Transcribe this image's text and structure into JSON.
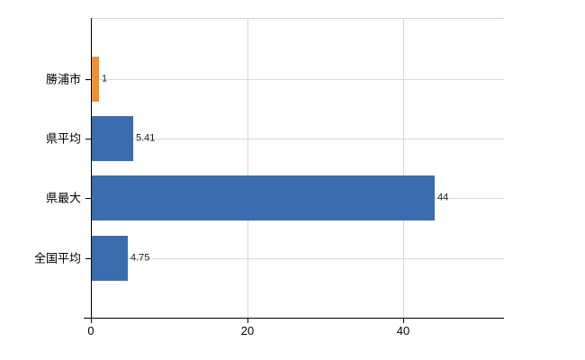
{
  "chart_data": {
    "type": "bar",
    "orientation": "horizontal",
    "title": "",
    "xlabel": "",
    "ylabel": "",
    "categories": [
      "勝浦市",
      "県平均",
      "県最大",
      "全国平均"
    ],
    "values": [
      1,
      5.41,
      44,
      4.75
    ],
    "value_labels": [
      "1",
      "5.41",
      "44",
      "4.75"
    ],
    "bar_colors": [
      "#f0912d",
      "#3b6cae",
      "#3b6cae",
      "#3b6cae"
    ],
    "xlim": [
      0,
      52.9
    ],
    "x_ticks": [
      0,
      20,
      40
    ],
    "grid": true,
    "legend": false,
    "colors": {
      "highlight_bar": "#f0912d",
      "default_bar": "#3b6cae",
      "gridline": "#d9d9d9",
      "plot_border": "#d6d6d6",
      "axis": "#000000",
      "text": "#000000",
      "value_text": "#1a1a1a",
      "background": "#ffffff"
    }
  }
}
